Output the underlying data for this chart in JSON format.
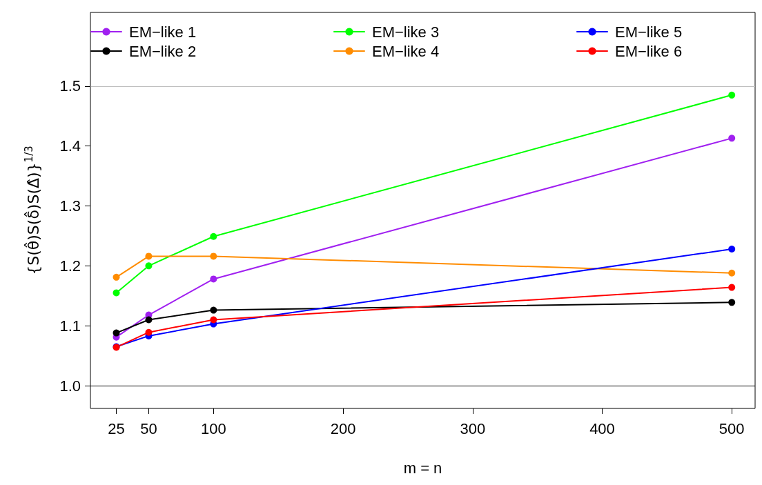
{
  "chart_data": {
    "type": "line",
    "xlabel": "m = n",
    "ylabel": "{S(θ̂)S(δ̂)S(Δ̂)}$^{1/3}$",
    "x": [
      25,
      50,
      100,
      500
    ],
    "series": [
      {
        "name": "EM−like 1",
        "color": "#a020f0",
        "values": [
          1.081,
          1.118,
          1.178,
          1.413
        ]
      },
      {
        "name": "EM−like 2",
        "color": "#000000",
        "values": [
          1.088,
          1.11,
          1.126,
          1.139
        ]
      },
      {
        "name": "EM−like 3",
        "color": "#00ff00",
        "values": [
          1.155,
          1.2,
          1.249,
          1.485
        ]
      },
      {
        "name": "EM−like 4",
        "color": "#ff8c00",
        "values": [
          1.181,
          1.216,
          1.216,
          1.188
        ]
      },
      {
        "name": "EM−like 5",
        "color": "#0000ff",
        "values": [
          1.065,
          1.083,
          1.103,
          1.228
        ]
      },
      {
        "name": "EM−like 6",
        "color": "#ff0000",
        "values": [
          1.064,
          1.089,
          1.11,
          1.164
        ]
      }
    ],
    "xlim": [
      5,
      518
    ],
    "xticks": [
      25,
      50,
      100,
      200,
      300,
      400,
      500
    ],
    "ylim": [
      0.962,
      1.623
    ],
    "yticks": [
      {
        "value": 1,
        "label": "1.0"
      },
      1.1,
      1.2,
      1.3,
      1.4,
      {
        "value": 1.5,
        "label": "1.5"
      }
    ],
    "ref_lines": [
      {
        "axis": "y",
        "value": 1,
        "color": "#000000"
      },
      {
        "axis": "y",
        "value": 1.5,
        "color": "#bebebe"
      }
    ],
    "legend": "top",
    "marker": "circle",
    "line_style": "solid",
    "grid": false
  }
}
